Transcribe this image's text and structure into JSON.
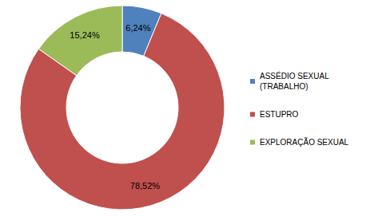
{
  "chart_data": {
    "type": "pie",
    "categories": [
      "ASSÉDIO SEXUAL (TRABALHO)",
      "ESTUPRO",
      "EXPLORAÇÃO SEXUAL"
    ],
    "values": [
      6.24,
      78.52,
      15.24
    ],
    "value_labels": [
      "6,24%",
      "78,52%",
      "15,24%"
    ],
    "colors": [
      "#4f81bd",
      "#c0504d",
      "#9bbb59"
    ],
    "data_labels": true,
    "legend": "right"
  }
}
